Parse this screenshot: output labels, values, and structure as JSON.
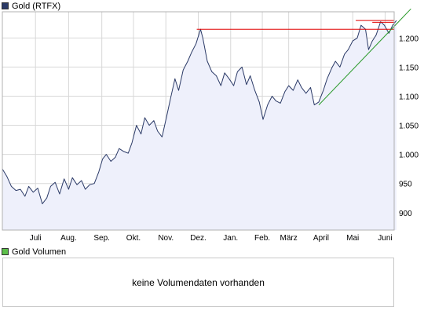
{
  "legend": {
    "price_label": "Gold (RTFX)",
    "price_color": "#2b3a67",
    "volume_label": "Gold Volumen",
    "volume_color": "#5cbf4a"
  },
  "volume_panel": {
    "message": "keine Volumendaten vorhanden"
  },
  "colors": {
    "line": "#2b3a67",
    "area_fill": "#eef0fb",
    "grid": "#d8d8d8",
    "resistance": "#e00000",
    "trend": "#2a9a2a"
  },
  "chart_data": {
    "type": "area",
    "title": "Gold (RTFX)",
    "xlabel": "",
    "ylabel": "",
    "ylim": [
      870,
      1245
    ],
    "xlim": [
      0,
      52
    ],
    "y_ticks": [
      900,
      950,
      1000,
      1050,
      1100,
      1150,
      1200
    ],
    "y_tick_labels": [
      "900",
      "950",
      "1.000",
      "1.050",
      "1.100",
      "1.150",
      "1.200"
    ],
    "x_ticks": [
      {
        "t": 4.4,
        "label": "Juli"
      },
      {
        "t": 8.8,
        "label": "Aug."
      },
      {
        "t": 13.2,
        "label": "Sep."
      },
      {
        "t": 17.4,
        "label": "Okt."
      },
      {
        "t": 21.7,
        "label": "Nov."
      },
      {
        "t": 26.0,
        "label": "Dez."
      },
      {
        "t": 30.3,
        "label": "Jan."
      },
      {
        "t": 34.5,
        "label": "Feb."
      },
      {
        "t": 38.0,
        "label": "März"
      },
      {
        "t": 42.3,
        "label": "April"
      },
      {
        "t": 46.5,
        "label": "Mai"
      },
      {
        "t": 50.8,
        "label": "Juni"
      }
    ],
    "grid": true,
    "series": [
      {
        "name": "Gold (RTFX)",
        "t": [
          0,
          0.6,
          1.2,
          1.8,
          2.4,
          3,
          3.5,
          4.1,
          4.7,
          5.3,
          5.9,
          6.4,
          7,
          7.6,
          8.2,
          8.8,
          9.3,
          9.9,
          10.5,
          11,
          11.6,
          12.2,
          12.8,
          13.3,
          13.8,
          14.4,
          15,
          15.5,
          16.1,
          16.7,
          17.2,
          17.8,
          18.4,
          18.9,
          19.5,
          20.1,
          20.6,
          21.2,
          21.8,
          22.3,
          22.9,
          23.4,
          24,
          24.6,
          25.1,
          25.7,
          26.3,
          26.6,
          27.2,
          27.8,
          28.4,
          29,
          29.5,
          30.1,
          30.7,
          31.2,
          31.8,
          32.4,
          32.9,
          33.5,
          34.1,
          34.6,
          35.2,
          35.8,
          36.3,
          36.9,
          37.5,
          38,
          38.6,
          39.2,
          39.7,
          40.3,
          40.9,
          41.4,
          42,
          42.6,
          43.1,
          43.7,
          44.2,
          44.8,
          45.4,
          45.9,
          46.5,
          47.1,
          47.6,
          48.2,
          48.6,
          49.1,
          49.6,
          50.2,
          50.7,
          51.3,
          51.8,
          52.3
        ],
        "values": [
          975,
          962,
          945,
          938,
          940,
          928,
          945,
          935,
          942,
          915,
          925,
          945,
          952,
          932,
          958,
          940,
          960,
          948,
          955,
          940,
          948,
          950,
          970,
          992,
          1000,
          988,
          995,
          1010,
          1005,
          1002,
          1020,
          1050,
          1035,
          1063,
          1050,
          1058,
          1040,
          1030,
          1065,
          1095,
          1130,
          1110,
          1145,
          1160,
          1175,
          1190,
          1215,
          1200,
          1160,
          1142,
          1135,
          1118,
          1140,
          1130,
          1118,
          1142,
          1150,
          1120,
          1135,
          1110,
          1090,
          1060,
          1085,
          1100,
          1092,
          1088,
          1108,
          1118,
          1110,
          1128,
          1115,
          1105,
          1115,
          1085,
          1090,
          1110,
          1130,
          1148,
          1160,
          1150,
          1172,
          1180,
          1195,
          1200,
          1222,
          1215,
          1180,
          1195,
          1205,
          1228,
          1222,
          1208,
          1222,
          1230
        ]
      }
    ],
    "annotations": {
      "resistance_lines": [
        {
          "t0": 25.8,
          "t1": 52.0,
          "value": 1215
        },
        {
          "t0": 46.9,
          "t1": 52.0,
          "value": 1230
        },
        {
          "t0": 49.1,
          "t1": 52.0,
          "value": 1227
        }
      ],
      "trend_line": {
        "t0": 42.0,
        "v0": 1085,
        "t1": 52.0,
        "v1": 1220
      }
    }
  }
}
